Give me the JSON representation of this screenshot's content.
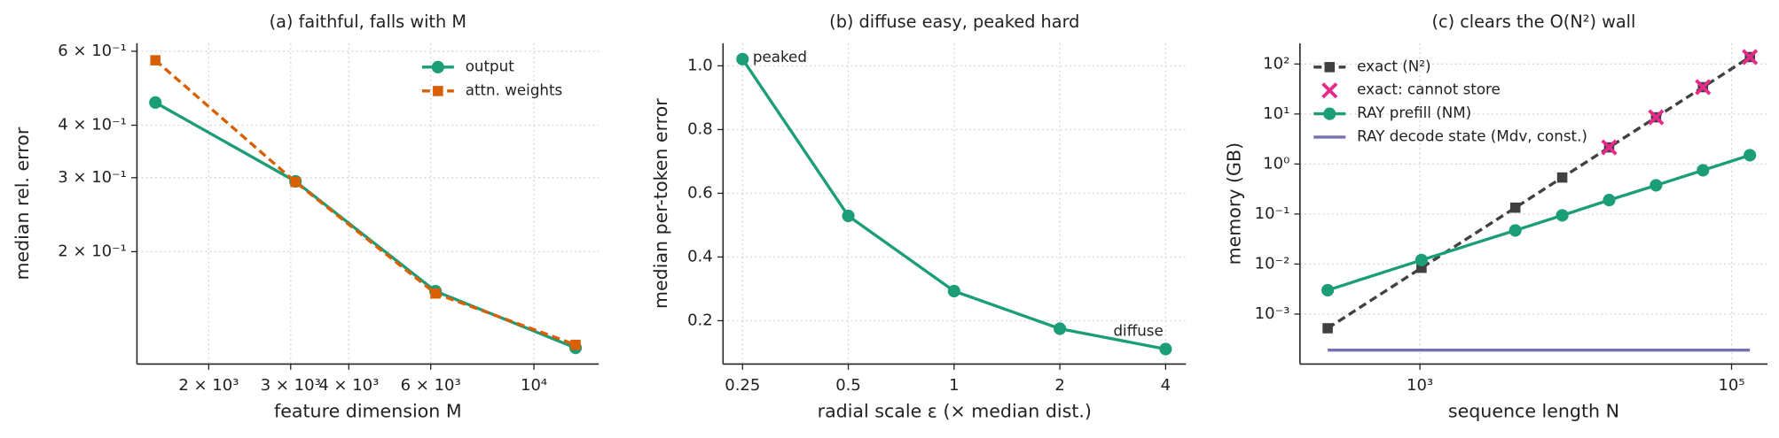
{
  "chart_data": [
    {
      "type": "line",
      "title": "(a) faithful, falls with M",
      "xlabel": "feature dimension M",
      "ylabel": "median rel. error",
      "xscale": "log",
      "yscale": "log",
      "grid": true,
      "legend": "upper right",
      "x": [
        1536,
        3072,
        6144,
        12288
      ],
      "xlim": [
        1402,
        13780
      ],
      "ylim": [
        0.108,
        0.627
      ],
      "xticks": [
        {
          "value": 2000,
          "label": "2 × 10³"
        },
        {
          "value": 3000,
          "label": "3 × 10³"
        },
        {
          "value": 4000,
          "label": "4 × 10³"
        },
        {
          "value": 6000,
          "label": "6 × 10³"
        },
        {
          "value": 10000,
          "label": "10⁴"
        }
      ],
      "yticks": [
        {
          "value": 0.2,
          "label": "2 × 10⁻¹"
        },
        {
          "value": 0.3,
          "label": "3 × 10⁻¹"
        },
        {
          "value": 0.4,
          "label": "4 × 10⁻¹"
        },
        {
          "value": 0.6,
          "label": "6 × 10⁻¹"
        }
      ],
      "series": [
        {
          "name": "output",
          "color": "#1b9e77",
          "marker": "o",
          "linestyle": "solid",
          "values": [
            0.453,
            0.294,
            0.161,
            0.118
          ]
        },
        {
          "name": "attn. weights",
          "color": "#d95f02",
          "marker": "s",
          "linestyle": "dashed",
          "values": [
            0.571,
            0.293,
            0.159,
            0.12
          ]
        }
      ]
    },
    {
      "type": "line",
      "title": "(b) diffuse easy, peaked hard",
      "xlabel": "radial scale ε (× median dist.)",
      "ylabel": "median per-token error",
      "xscale": "log",
      "yscale": "linear",
      "grid": true,
      "x": [
        0.25,
        0.5,
        1,
        2,
        4
      ],
      "xlim": [
        0.22,
        4.57
      ],
      "ylim": [
        0.064,
        1.071
      ],
      "xticks": [
        0.25,
        0.5,
        1,
        2,
        4
      ],
      "yticks": [
        0.2,
        0.4,
        0.6,
        0.8,
        {
          "value": 1,
          "label": "1.0"
        }
      ],
      "annotations": [
        "peaked",
        "diffuse"
      ],
      "series": [
        {
          "color": "#1b9e77",
          "marker": "o",
          "linestyle": "solid",
          "values": [
            1.021,
            0.529,
            0.293,
            0.175,
            0.111
          ]
        }
      ]
    },
    {
      "type": "line",
      "title": "(c) clears the O(N²) wall",
      "xlabel": "sequence length N",
      "ylabel": "memory (GB)",
      "xscale": "log",
      "yscale": "log",
      "grid": true,
      "legend": "upper left",
      "x": [
        256,
        1024,
        4096,
        8192,
        16384,
        32768,
        65536,
        131072
      ],
      "xlim": [
        170,
        170000
      ],
      "ylim": [
        0.0001,
        260
      ],
      "xticks": [
        {
          "value": 1000,
          "label": "10³"
        },
        {
          "value": 100000,
          "label": "10⁵"
        }
      ],
      "yticks": [
        {
          "value": 0.001,
          "label": "10⁻³"
        },
        {
          "value": 0.01,
          "label": "10⁻²"
        },
        {
          "value": 0.1,
          "label": "10⁻¹"
        },
        {
          "value": 1,
          "label": "10⁰"
        },
        {
          "value": 10,
          "label": "10¹"
        },
        {
          "value": 100,
          "label": "10²"
        }
      ],
      "series": [
        {
          "name": "exact (N²)",
          "color": "#404040",
          "marker": "s",
          "linestyle": "dashed",
          "values": [
            0.00052,
            0.0084,
            0.134,
            0.537,
            2.15,
            8.59,
            34.4,
            137.4
          ]
        },
        {
          "name": "exact: cannot store",
          "color": "#e7298a",
          "marker": "x",
          "linestyle": "none",
          "values": [
            null,
            null,
            null,
            null,
            2.15,
            8.59,
            34.4,
            137.4
          ]
        },
        {
          "name": "RAY prefill (NM)",
          "color": "#1b9e77",
          "marker": "o",
          "linestyle": "solid",
          "values": [
            0.003,
            0.012,
            0.047,
            0.094,
            0.19,
            0.375,
            0.75,
            1.5
          ]
        },
        {
          "name": "RAY decode state (Mdv, const.)",
          "color": "#7570b3",
          "marker": "none",
          "linestyle": "solid",
          "values": [
            0.00019,
            0.00019,
            0.00019,
            0.00019,
            0.00019,
            0.00019,
            0.00019,
            0.00019
          ]
        }
      ]
    }
  ]
}
